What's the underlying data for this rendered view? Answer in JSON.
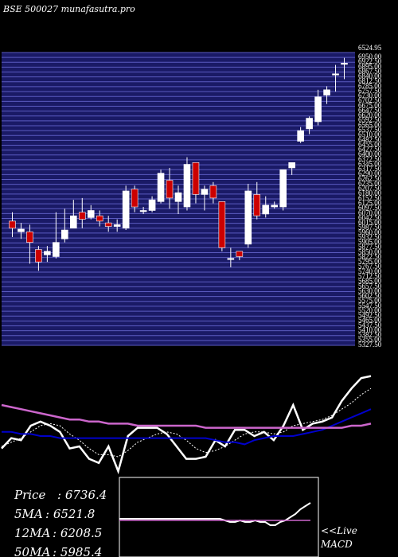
{
  "header": {
    "caption": "BSE 500027 munafasutra.pro"
  },
  "colors": {
    "background": "#000000",
    "grid_band": "#1a1a66",
    "grid_line": "#5a5ac0",
    "up_candle": "#ffffff",
    "down_candle": "#cc0000",
    "price_line": "#ffffff",
    "ma_short": "#ffffff",
    "ma_medium": "#0000cc",
    "ma_long": "#cc66cc",
    "macd_line": "#ffffff",
    "macd_signal": "#cc66cc"
  },
  "chart_data": [
    {
      "type": "candlestick",
      "ylim": [
        5300,
        6950
      ],
      "top_price_label": "6524.95",
      "candles": [
        {
          "o": 6000,
          "h": 6050,
          "l": 5910,
          "c": 5960
        },
        {
          "o": 5940,
          "h": 5990,
          "l": 5900,
          "c": 5955
        },
        {
          "o": 5940,
          "h": 5980,
          "l": 5760,
          "c": 5880
        },
        {
          "o": 5840,
          "h": 5860,
          "l": 5720,
          "c": 5770
        },
        {
          "o": 5810,
          "h": 5860,
          "l": 5770,
          "c": 5830
        },
        {
          "o": 5800,
          "h": 6050,
          "l": 5790,
          "c": 5880
        },
        {
          "o": 5900,
          "h": 6070,
          "l": 5880,
          "c": 5950
        },
        {
          "o": 5960,
          "h": 6120,
          "l": 5960,
          "c": 6030
        },
        {
          "o": 6050,
          "h": 6130,
          "l": 5960,
          "c": 6010
        },
        {
          "o": 6020,
          "h": 6090,
          "l": 6010,
          "c": 6060
        },
        {
          "o": 6030,
          "h": 6060,
          "l": 5970,
          "c": 6000
        },
        {
          "o": 5990,
          "h": 6030,
          "l": 5940,
          "c": 5970
        },
        {
          "o": 5970,
          "h": 6010,
          "l": 5940,
          "c": 5980
        },
        {
          "o": 5960,
          "h": 6200,
          "l": 5950,
          "c": 6170
        },
        {
          "o": 6180,
          "h": 6200,
          "l": 6050,
          "c": 6080
        },
        {
          "o": 6060,
          "h": 6080,
          "l": 6040,
          "c": 6060
        },
        {
          "o": 6060,
          "h": 6140,
          "l": 6050,
          "c": 6120
        },
        {
          "o": 6110,
          "h": 6290,
          "l": 6100,
          "c": 6270
        },
        {
          "o": 6230,
          "h": 6300,
          "l": 6070,
          "c": 6130
        },
        {
          "o": 6110,
          "h": 6200,
          "l": 6040,
          "c": 6160
        },
        {
          "o": 6080,
          "h": 6360,
          "l": 6060,
          "c": 6320
        },
        {
          "o": 6330,
          "h": 6330,
          "l": 6100,
          "c": 6150
        },
        {
          "o": 6150,
          "h": 6200,
          "l": 6060,
          "c": 6180
        },
        {
          "o": 6200,
          "h": 6220,
          "l": 6100,
          "c": 6130
        },
        {
          "o": 6110,
          "h": 6110,
          "l": 5830,
          "c": 5850
        },
        {
          "o": 5790,
          "h": 5850,
          "l": 5740,
          "c": 5790
        },
        {
          "o": 5830,
          "h": 5830,
          "l": 5780,
          "c": 5800
        },
        {
          "o": 5870,
          "h": 6210,
          "l": 5850,
          "c": 6170
        },
        {
          "o": 6150,
          "h": 6220,
          "l": 6010,
          "c": 6030
        },
        {
          "o": 6040,
          "h": 6140,
          "l": 6020,
          "c": 6090
        },
        {
          "o": 6080,
          "h": 6110,
          "l": 6070,
          "c": 6090
        },
        {
          "o": 6080,
          "h": 6280,
          "l": 6060,
          "c": 6290
        },
        {
          "o": 6300,
          "h": 6330,
          "l": 6260,
          "c": 6330
        },
        {
          "o": 6450,
          "h": 6530,
          "l": 6440,
          "c": 6510
        },
        {
          "o": 6520,
          "h": 6590,
          "l": 6490,
          "c": 6580
        },
        {
          "o": 6560,
          "h": 6740,
          "l": 6540,
          "c": 6700
        },
        {
          "o": 6710,
          "h": 6760,
          "l": 6660,
          "c": 6740
        },
        {
          "o": 6830,
          "h": 6880,
          "l": 6730,
          "c": 6830
        },
        {
          "o": 6890,
          "h": 6920,
          "l": 6800,
          "c": 6890
        }
      ]
    },
    {
      "type": "line",
      "series": [
        {
          "key": "price",
          "values": [
            28,
            38,
            36,
            50,
            54,
            50,
            44,
            28,
            30,
            18,
            14,
            30,
            6,
            40,
            48,
            48,
            48,
            42,
            30,
            18,
            18,
            20,
            36,
            30,
            46,
            46,
            40,
            44,
            36,
            50,
            70,
            46,
            52,
            54,
            58,
            74,
            86,
            96,
            98
          ]
        },
        {
          "key": "ma_short",
          "values": [
            30,
            34,
            38,
            44,
            50,
            52,
            50,
            42,
            36,
            28,
            22,
            22,
            20,
            26,
            34,
            38,
            42,
            44,
            42,
            36,
            28,
            24,
            26,
            30,
            36,
            42,
            44,
            44,
            42,
            44,
            50,
            52,
            54,
            56,
            60,
            66,
            72,
            80,
            86
          ]
        },
        {
          "key": "ma_medium",
          "values": [
            44,
            44,
            42,
            42,
            40,
            40,
            38,
            38,
            38,
            38,
            38,
            38,
            38,
            38,
            38,
            38,
            38,
            38,
            38,
            38,
            38,
            38,
            36,
            34,
            34,
            32,
            36,
            38,
            40,
            40,
            40,
            42,
            44,
            46,
            50,
            54,
            58,
            62,
            66
          ]
        },
        {
          "key": "ma_long",
          "values": [
            70,
            68,
            66,
            64,
            62,
            60,
            58,
            56,
            56,
            54,
            54,
            52,
            52,
            52,
            50,
            50,
            50,
            50,
            50,
            50,
            50,
            48,
            48,
            48,
            48,
            48,
            48,
            48,
            48,
            48,
            48,
            48,
            48,
            48,
            48,
            48,
            50,
            50,
            52
          ]
        }
      ]
    },
    {
      "type": "line",
      "title": "<<Live MACD",
      "series": [
        {
          "key": "macd",
          "values": [
            48,
            48,
            48,
            48,
            48,
            48,
            48,
            48,
            48,
            48,
            48,
            48,
            48,
            48,
            48,
            48,
            48,
            48,
            48,
            48,
            48,
            46,
            44,
            44,
            46,
            44,
            44,
            46,
            44,
            44,
            40,
            40,
            44,
            46,
            50,
            54,
            60,
            64,
            68
          ]
        },
        {
          "key": "signal",
          "values": [
            46,
            46,
            46,
            46,
            46,
            46,
            46,
            46,
            46,
            46,
            46,
            46,
            46,
            46,
            46,
            46,
            46,
            46,
            46,
            46,
            46,
            46,
            46,
            46,
            46,
            46,
            46,
            46,
            46,
            46,
            46,
            46,
            46,
            46,
            46,
            46,
            46,
            46,
            46
          ]
        }
      ]
    }
  ],
  "info": {
    "price_label": "Price",
    "price_value": ": 6736.4",
    "ma5_label": "5MA",
    "ma5_value": ": 6521.8",
    "ma12_label": "12MA",
    "ma12_value": ": 6208.5",
    "ma50_label": "50MA",
    "ma50_value": ": 5985.4"
  },
  "macd_caption": "<<Live",
  "macd_caption2": "MACD"
}
